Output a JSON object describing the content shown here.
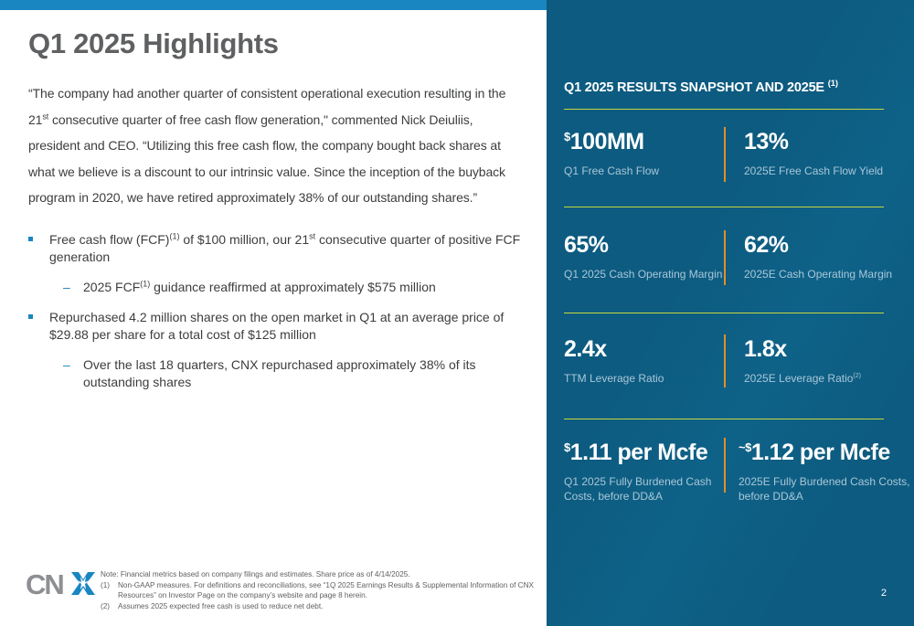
{
  "title": "Q1 2025 Highlights",
  "quote": {
    "part1": "“The company had another quarter of consistent operational execution resulting in the 21",
    "sup1": "st",
    "part2": " consecutive quarter of free cash flow generation,\" commented Nick Deiuliis, president and CEO. “Utilizing this free cash flow, the company bought back shares at what we believe is a discount to our intrinsic value. Since the inception of the buyback program in 2020, we have retired approximately 38% of our outstanding shares.”"
  },
  "bullets": [
    {
      "p1": "Free cash flow (FCF)",
      "s1": "(1)",
      "p2": " of $100 million, our 21",
      "s2": "st",
      "p3": " consecutive quarter of positive FCF generation",
      "sub": {
        "p1": "2025 FCF",
        "s1": "(1)",
        "p2": " guidance reaffirmed at approximately $575 million"
      }
    },
    {
      "text": "Repurchased 4.2 million shares on the open market in Q1 at an average price of $29.88 per share for a total cost of $125 million",
      "sub": {
        "text": "Over the last 18 quarters, CNX repurchased approximately 38% of its outstanding shares"
      }
    }
  ],
  "panel": {
    "title": "Q1 2025 RESULTS SNAPSHOT AND 2025E",
    "title_sup": "(1)",
    "metrics": [
      {
        "prefix": "$",
        "value": "100MM",
        "label": "Q1 Free Cash Flow"
      },
      {
        "value": "13%",
        "label": "2025E Free Cash Flow Yield"
      },
      {
        "value": "65%",
        "label": "Q1 2025 Cash Operating Margin"
      },
      {
        "value": "62%",
        "label": "2025E Cash Operating Margin"
      },
      {
        "value": "2.4x",
        "label": "TTM Leverage Ratio"
      },
      {
        "value": "1.8x",
        "label": "2025E Leverage Ratio",
        "label_sup": "(2)"
      },
      {
        "prefix": "$",
        "value": "1.11 per Mcfe",
        "label": "Q1 2025 Fully Burdened Cash Costs, before DD&A"
      },
      {
        "prefix": "~$",
        "value": "1.12 per Mcfe",
        "label": "2025E Fully Burdened Cash Costs, before DD&A"
      }
    ]
  },
  "footnotes": {
    "note": "Note: Financial metrics based on company filings and estimates. Share price as of 4/14/2025.",
    "items": [
      {
        "num": "(1)",
        "text": "Non-GAAP measures. For definitions and reconciliations, see “1Q 2025 Earnings Results & Supplemental Information of CNX Resources” on Investor Page on the company’s website and page 8 herein."
      },
      {
        "num": "(2)",
        "text": "Assumes 2025 expected free cash is used to reduce net debt."
      }
    ]
  },
  "logo": {
    "text": "CNX",
    "icon": "cnx-logo-icon"
  },
  "page_number": "2",
  "colors": {
    "accent_blue": "#1a86c1",
    "panel_blue": "#0d5b80",
    "divider_green": "#c6d640",
    "divider_orange": "#e58d26",
    "title_gray": "#5f6062"
  }
}
